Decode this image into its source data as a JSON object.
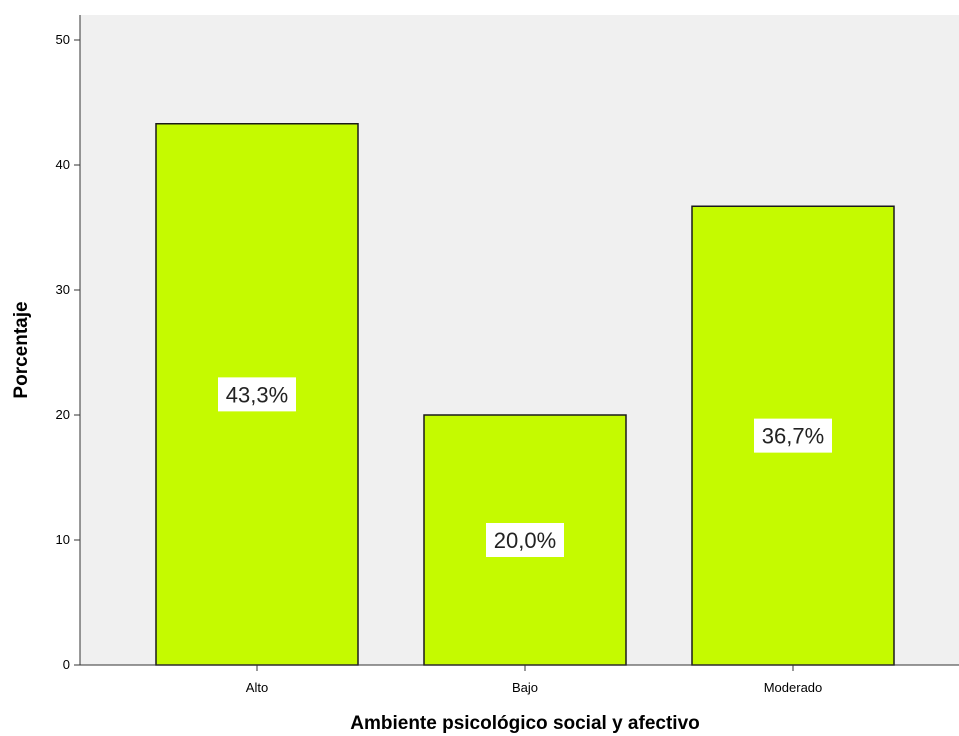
{
  "chart_data": {
    "type": "bar",
    "categories": [
      "Alto",
      "Bajo",
      "Moderado"
    ],
    "values": [
      43.3,
      20.0,
      36.7
    ],
    "data_labels": [
      "43,3%",
      "20,0%",
      "36,7%"
    ],
    "xlabel": "Ambiente psicológico social y afectivo",
    "ylabel": "Porcentaje",
    "ylim": [
      0,
      52
    ],
    "yticks": [
      0,
      10,
      20,
      30,
      40,
      50
    ],
    "ytick_labels": [
      "0",
      "10",
      "20",
      "30",
      "40",
      "50"
    ],
    "grid": false,
    "legend": "none"
  },
  "colors": {
    "bar_fill": "#c5fa00",
    "bar_stroke": "#1a1a1a",
    "plot_background": "#f0f0f0",
    "axis": "#333333",
    "label_box": "#ffffff"
  }
}
